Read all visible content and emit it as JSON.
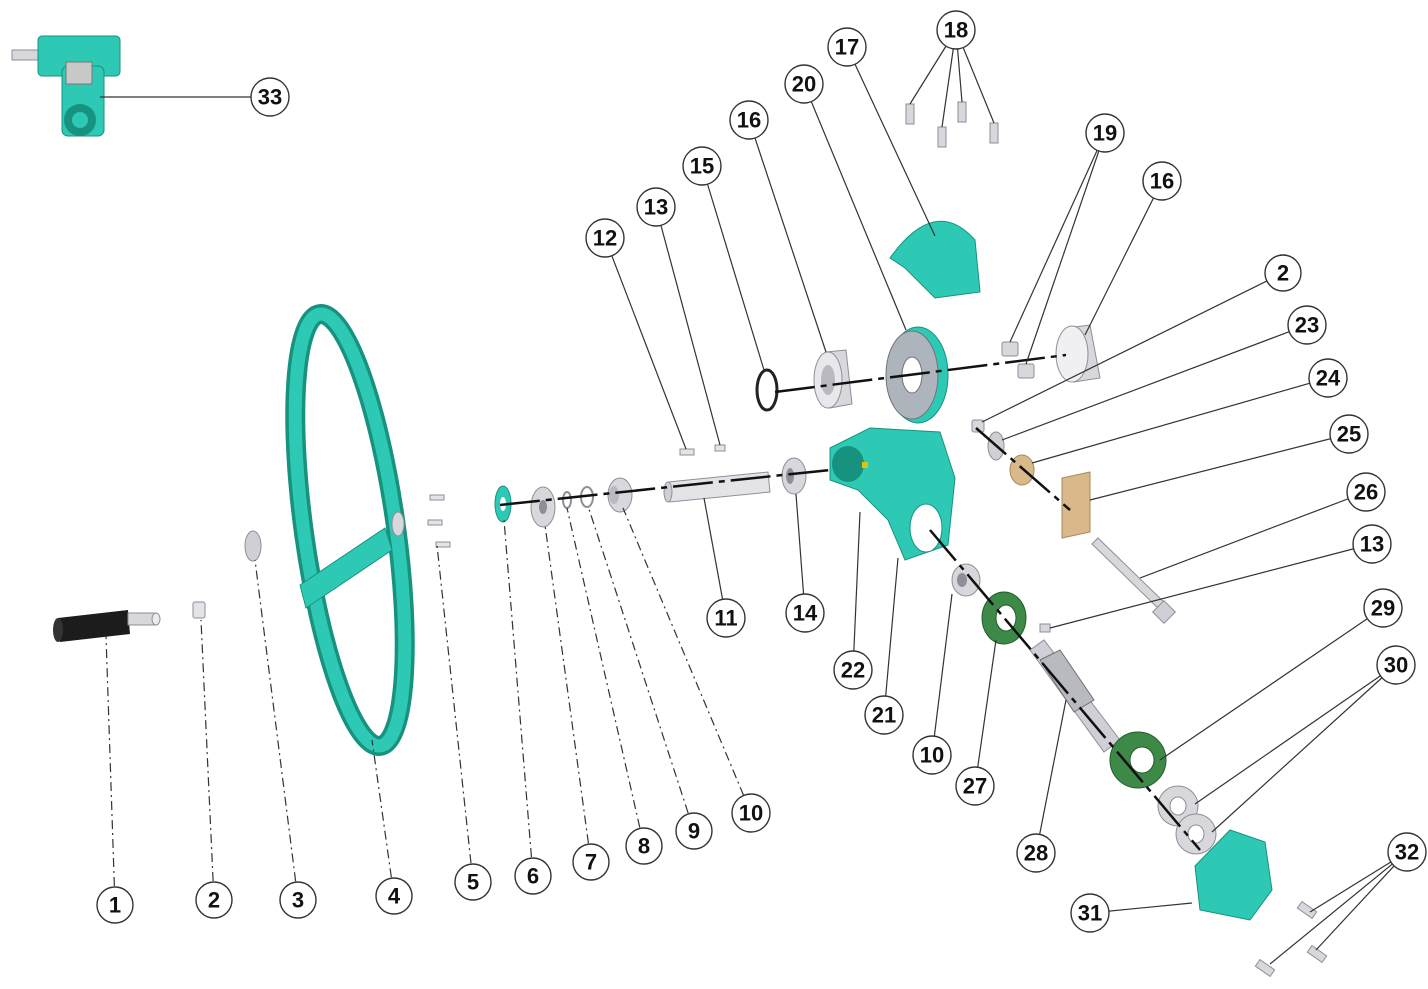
{
  "colors": {
    "teal": "#2ec9b4",
    "teal_dark": "#17927f",
    "green": "#3d8a48",
    "green_dark": "#235c2c",
    "metal": "#d7d7dc",
    "metal_dark": "#8e8e98",
    "tan": "#d9b98a",
    "black": "#1c1c1c"
  },
  "callouts": [
    {
      "label": "1"
    },
    {
      "label": "2"
    },
    {
      "label": "3"
    },
    {
      "label": "4"
    },
    {
      "label": "5"
    },
    {
      "label": "6"
    },
    {
      "label": "7"
    },
    {
      "label": "8"
    },
    {
      "label": "9"
    },
    {
      "label": "10"
    },
    {
      "label": "11"
    },
    {
      "label": "12"
    },
    {
      "label": "13"
    },
    {
      "label": "14"
    },
    {
      "label": "15"
    },
    {
      "label": "16"
    },
    {
      "label": "17"
    },
    {
      "label": "18"
    },
    {
      "label": "19"
    },
    {
      "label": "16"
    },
    {
      "label": "20"
    },
    {
      "label": "2"
    },
    {
      "label": "23"
    },
    {
      "label": "24"
    },
    {
      "label": "25"
    },
    {
      "label": "26"
    },
    {
      "label": "13"
    },
    {
      "label": "22"
    },
    {
      "label": "21"
    },
    {
      "label": "10"
    },
    {
      "label": "27"
    },
    {
      "label": "28"
    },
    {
      "label": "29"
    },
    {
      "label": "30"
    },
    {
      "label": "31"
    },
    {
      "label": "32"
    },
    {
      "label": "33"
    }
  ]
}
